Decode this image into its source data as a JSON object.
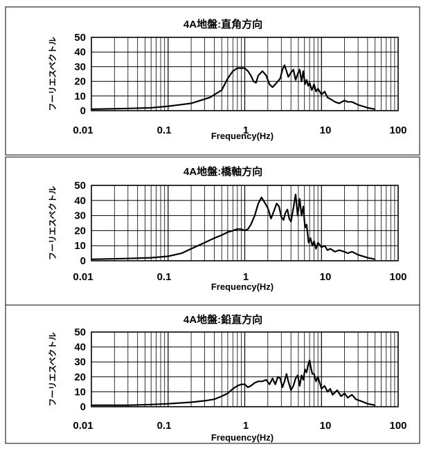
{
  "chart_data": [
    {
      "type": "line",
      "title": "4A地盤:直角方向",
      "xlabel": "Frequency(Hz)",
      "ylabel": "フーリエスペクトル",
      "x_scale": "log",
      "xlim": [
        0.01,
        100
      ],
      "ylim": [
        0,
        50
      ],
      "x_ticks": [
        "0.01",
        "0.1",
        "1",
        "10",
        "100"
      ],
      "y_ticks": [
        "0",
        "10",
        "20",
        "30",
        "40",
        "50"
      ],
      "grid": true,
      "series": [
        {
          "x": [
            0.01,
            0.03,
            0.06,
            0.1,
            0.2,
            0.35,
            0.5,
            0.6,
            0.7,
            0.8,
            0.9,
            1.0,
            1.1,
            1.2,
            1.3,
            1.4,
            1.5,
            1.7,
            1.9,
            2.1,
            2.3,
            2.6,
            2.9,
            3.1,
            3.3,
            3.5,
            3.7,
            4.0,
            4.3,
            4.6,
            4.9,
            5.2,
            5.5,
            5.8,
            6.1,
            6.4,
            6.7,
            7.0,
            7.5,
            8,
            8.5,
            9,
            10,
            11,
            12,
            13,
            15,
            17,
            20,
            22,
            25,
            30,
            40,
            50
          ],
          "y": [
            1,
            1.5,
            2,
            3,
            5,
            9,
            14,
            22,
            27,
            29,
            29,
            29,
            27,
            24,
            20,
            19,
            24,
            27,
            24,
            18,
            16,
            19,
            22,
            28,
            31,
            27,
            23,
            26,
            28,
            21,
            25,
            28,
            20,
            27,
            18,
            21,
            17,
            19,
            14,
            18,
            13,
            15,
            11,
            13,
            9,
            8,
            6,
            5,
            7,
            6,
            6,
            4,
            2,
            1
          ]
        }
      ]
    },
    {
      "type": "line",
      "title": "4A地盤:橋軸方向",
      "xlabel": "Frequency(Hz)",
      "ylabel": "フーリエスペクトル",
      "x_scale": "log",
      "xlim": [
        0.01,
        100
      ],
      "ylim": [
        0,
        50
      ],
      "x_ticks": [
        "0.01",
        "0.1",
        "1",
        "10",
        "100"
      ],
      "y_ticks": [
        "0",
        "10",
        "20",
        "30",
        "40",
        "50"
      ],
      "grid": true,
      "series": [
        {
          "x": [
            0.01,
            0.03,
            0.06,
            0.1,
            0.15,
            0.2,
            0.3,
            0.4,
            0.5,
            0.6,
            0.7,
            0.8,
            0.9,
            1.0,
            1.1,
            1.2,
            1.35,
            1.5,
            1.65,
            1.8,
            2.0,
            2.2,
            2.4,
            2.6,
            2.8,
            3.0,
            3.2,
            3.4,
            3.6,
            3.8,
            4.0,
            4.3,
            4.6,
            4.9,
            5.2,
            5.5,
            5.8,
            6.1,
            6.4,
            6.8,
            7.2,
            7.6,
            8,
            8.5,
            9,
            10,
            11,
            12,
            13,
            15,
            17,
            20,
            22,
            25,
            30,
            40,
            50
          ],
          "y": [
            1,
            1.5,
            2,
            3,
            5,
            8,
            12,
            15,
            17,
            19,
            20,
            21,
            21,
            20,
            21,
            24,
            30,
            38,
            42,
            39,
            35,
            28,
            33,
            38,
            36,
            29,
            27,
            32,
            34,
            28,
            26,
            35,
            44,
            30,
            41,
            30,
            36,
            22,
            24,
            12,
            15,
            10,
            13,
            8,
            12,
            9,
            10,
            7,
            8,
            6,
            7,
            6,
            5,
            6,
            4,
            2,
            1
          ]
        }
      ]
    },
    {
      "type": "line",
      "title": "4A地盤:鉛直方向",
      "xlabel": "Frequency(Hz)",
      "ylabel": "フーリエスペクトル",
      "x_scale": "log",
      "xlim": [
        0.01,
        100
      ],
      "ylim": [
        0,
        50
      ],
      "x_ticks": [
        "0.01",
        "0.1",
        "1",
        "10",
        "100"
      ],
      "y_ticks": [
        "0",
        "10",
        "20",
        "30",
        "40",
        "50"
      ],
      "grid": true,
      "series": [
        {
          "x": [
            0.01,
            0.03,
            0.06,
            0.1,
            0.2,
            0.3,
            0.4,
            0.5,
            0.6,
            0.7,
            0.8,
            0.9,
            1.0,
            1.1,
            1.2,
            1.35,
            1.5,
            1.7,
            1.9,
            2.1,
            2.3,
            2.5,
            2.7,
            2.9,
            3.1,
            3.3,
            3.5,
            3.7,
            4.0,
            4.3,
            4.6,
            4.9,
            5.2,
            5.5,
            5.8,
            6.1,
            6.4,
            6.7,
            7.0,
            7.3,
            7.6,
            8,
            8.5,
            9,
            10,
            11,
            12,
            13,
            14,
            16,
            18,
            20,
            22,
            25,
            28,
            32,
            40,
            50
          ],
          "y": [
            1,
            1,
            1.5,
            2,
            3,
            4,
            5,
            7,
            9,
            12,
            14,
            15,
            15,
            13,
            14,
            16,
            17,
            17,
            18,
            15,
            19,
            15,
            20,
            19,
            13,
            17,
            22,
            17,
            11,
            14,
            19,
            21,
            14,
            21,
            18,
            25,
            23,
            28,
            31,
            26,
            22,
            22,
            17,
            20,
            12,
            14,
            10,
            12,
            8,
            11,
            7,
            9,
            6,
            8,
            5,
            4,
            2,
            1
          ]
        }
      ]
    }
  ]
}
